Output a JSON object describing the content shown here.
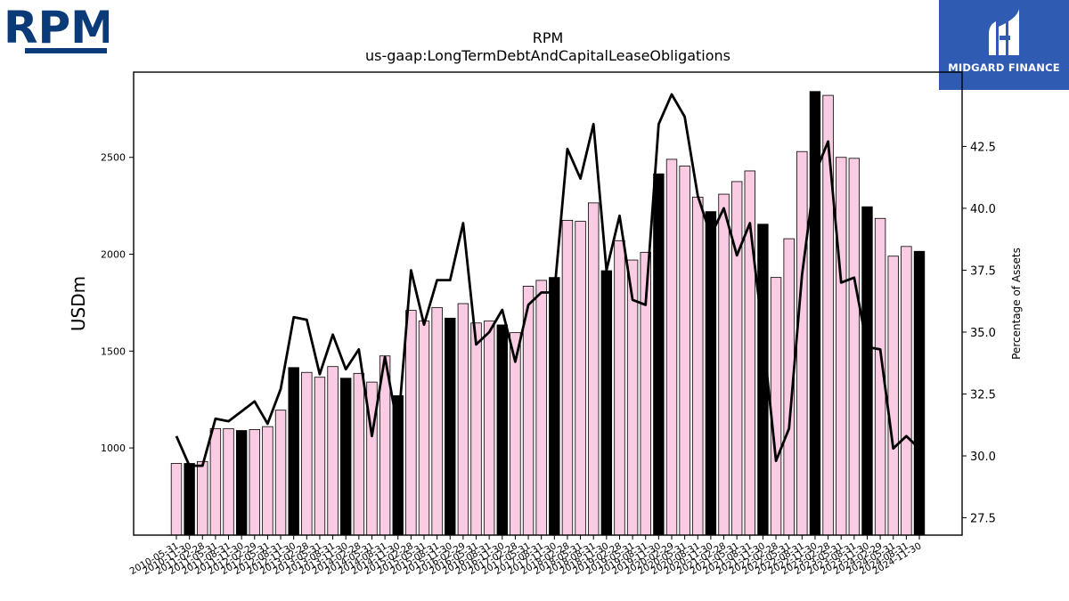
{
  "logos": {
    "left_text": "RPM",
    "right_text": "MIDGARD FINANCE",
    "left_color": "#0b3a78",
    "right_bg": "#2f5bb2"
  },
  "chart_data": {
    "type": "bar",
    "title": "RPM",
    "subtitle": "us-gaap:LongTermDebtAndCapitalLeaseObligations",
    "ylabel": "USDm",
    "y2label": "Percentage of Assets",
    "ylim": [
      550,
      2940
    ],
    "y2lim": [
      26.8,
      45.5
    ],
    "yticks": [
      1000,
      1500,
      2000,
      2500
    ],
    "y2ticks": [
      27.5,
      30.0,
      32.5,
      35.0,
      37.5,
      40.0,
      42.5
    ],
    "grid": false,
    "colors": {
      "bar_quarter": "#f9cce3",
      "bar_annual": "#000000",
      "line": "#000000"
    },
    "categories": [
      "2010-05-31",
      "2010-11-30",
      "2011-02-28",
      "2011-05-31",
      "2011-08-31",
      "2011-11-30",
      "2012-02-29",
      "2012-05-31",
      "2012-08-31",
      "2012-11-30",
      "2013-02-28",
      "2013-05-31",
      "2013-08-31",
      "2013-11-30",
      "2014-02-28",
      "2014-05-31",
      "2014-08-31",
      "2014-11-30",
      "2015-02-28",
      "2015-05-31",
      "2015-08-31",
      "2015-11-30",
      "2016-02-29",
      "2016-05-31",
      "2016-08-31",
      "2016-11-30",
      "2017-02-28",
      "2017-05-31",
      "2017-08-31",
      "2017-11-30",
      "2018-02-28",
      "2018-05-31",
      "2018-08-31",
      "2018-11-30",
      "2019-02-28",
      "2019-05-31",
      "2019-08-31",
      "2019-11-30",
      "2020-02-29",
      "2020-05-31",
      "2020-08-31",
      "2020-11-30",
      "2021-02-28",
      "2021-05-31",
      "2021-08-31",
      "2021-11-30",
      "2022-02-28",
      "2022-05-31",
      "2022-08-31",
      "2022-11-30",
      "2023-02-28",
      "2023-05-31",
      "2023-08-31",
      "2023-11-30",
      "2024-02-29",
      "2024-05-31",
      "2024-08-31",
      "2024-11-30"
    ],
    "annual": [
      false,
      true,
      false,
      false,
      false,
      true,
      false,
      false,
      false,
      true,
      false,
      false,
      false,
      true,
      false,
      false,
      false,
      true,
      false,
      false,
      false,
      true,
      false,
      false,
      false,
      true,
      false,
      false,
      false,
      true,
      false,
      false,
      false,
      true,
      false,
      false,
      false,
      true,
      false,
      false,
      false,
      true,
      false,
      false,
      false,
      true,
      false,
      false,
      false,
      true,
      false,
      false,
      false,
      true,
      false,
      false,
      false,
      true
    ],
    "series": [
      {
        "name": "LongTermDebtAndCapitalLeaseObligations",
        "axis": "left",
        "values": [
          920,
          920,
          930,
          1100,
          1100,
          1090,
          1095,
          1110,
          1195,
          1415,
          1390,
          1365,
          1420,
          1360,
          1385,
          1340,
          1475,
          1270,
          1710,
          1655,
          1725,
          1670,
          1745,
          1645,
          1655,
          1635,
          1595,
          1835,
          1865,
          1880,
          2175,
          2170,
          2265,
          1915,
          2070,
          1970,
          2010,
          2415,
          2490,
          2455,
          2295,
          2220,
          2310,
          2375,
          2430,
          2155,
          1880,
          2080,
          2530,
          2840,
          2820,
          2500,
          2495,
          2245,
          2185,
          1990,
          2040,
          2015
        ]
      },
      {
        "name": "Percentage of Assets",
        "axis": "right",
        "values": [
          30.8,
          29.6,
          29.6,
          31.5,
          31.4,
          31.8,
          32.2,
          31.3,
          32.7,
          35.6,
          35.5,
          33.3,
          34.9,
          33.5,
          34.3,
          30.8,
          34.0,
          31.1,
          37.5,
          35.3,
          37.1,
          37.1,
          39.4,
          34.5,
          35.0,
          35.9,
          33.8,
          36.1,
          36.6,
          36.6,
          42.4,
          41.2,
          43.4,
          37.5,
          39.7,
          36.3,
          36.1,
          43.4,
          44.6,
          43.7,
          40.5,
          38.9,
          40.0,
          38.1,
          39.4,
          34.9,
          29.8,
          31.1,
          37.3,
          41.4,
          42.7,
          37.0,
          37.2,
          34.4,
          34.3,
          30.3,
          30.8,
          30.3
        ]
      }
    ]
  }
}
